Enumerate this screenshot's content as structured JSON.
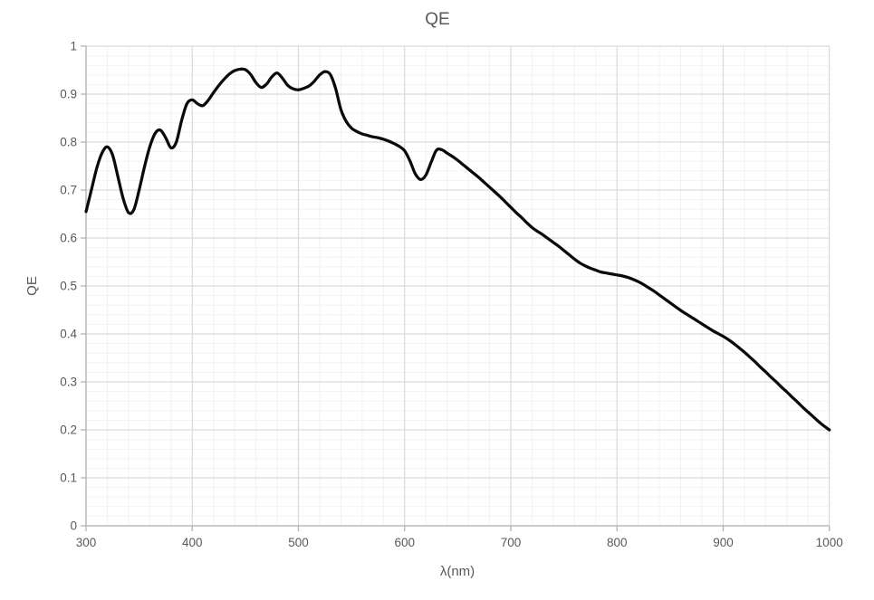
{
  "chart_data": {
    "type": "line",
    "title": "QE",
    "xlabel": "λ(nm)",
    "ylabel": "QE",
    "xlim": [
      300,
      1000
    ],
    "ylim": [
      0,
      1
    ],
    "grid": "major+minor",
    "legend_position": "none",
    "x_tick_values": [
      300,
      400,
      500,
      600,
      700,
      800,
      900,
      1000
    ],
    "x_tick_labels": [
      "300",
      "400",
      "500",
      "600",
      "700",
      "800",
      "900",
      "1000"
    ],
    "x_minor_step": 20,
    "y_tick_values": [
      0,
      0.1,
      0.2,
      0.3,
      0.4,
      0.5,
      0.6,
      0.7,
      0.8,
      0.9,
      1
    ],
    "y_tick_labels": [
      "0",
      "0.1",
      "0.2",
      "0.3",
      "0.4",
      "0.5",
      "0.6",
      "0.7",
      "0.8",
      "0.9",
      "1"
    ],
    "y_minor_step": 0.02,
    "colors": {
      "background": "#ffffff",
      "text": "#595959",
      "axis_line": "#b3b3b3",
      "grid_major": "#d9d9d9",
      "grid_minor": "#f2f2f2",
      "series_line": "#0a0a0a"
    },
    "line_width": 3.25,
    "series": [
      {
        "name": "QE",
        "x": [
          300,
          305,
          310,
          315,
          320,
          325,
          330,
          335,
          340,
          345,
          350,
          355,
          360,
          365,
          370,
          375,
          380,
          385,
          390,
          395,
          400,
          405,
          410,
          415,
          420,
          425,
          430,
          435,
          440,
          445,
          450,
          455,
          460,
          465,
          470,
          475,
          480,
          485,
          490,
          495,
          500,
          505,
          510,
          515,
          520,
          525,
          530,
          535,
          540,
          545,
          550,
          555,
          560,
          565,
          570,
          575,
          580,
          585,
          590,
          595,
          600,
          605,
          610,
          615,
          620,
          625,
          630,
          635,
          640,
          645,
          650,
          655,
          660,
          665,
          670,
          675,
          680,
          685,
          690,
          695,
          700,
          705,
          710,
          715,
          720,
          725,
          730,
          735,
          740,
          745,
          750,
          755,
          760,
          765,
          770,
          775,
          780,
          785,
          790,
          795,
          800,
          805,
          810,
          815,
          820,
          825,
          830,
          835,
          840,
          845,
          850,
          855,
          860,
          865,
          870,
          875,
          880,
          885,
          890,
          895,
          900,
          905,
          910,
          915,
          920,
          925,
          930,
          935,
          940,
          945,
          950,
          955,
          960,
          965,
          970,
          975,
          980,
          985,
          990,
          995,
          1000
        ],
        "y": [
          0.655,
          0.7,
          0.745,
          0.777,
          0.79,
          0.773,
          0.728,
          0.682,
          0.653,
          0.659,
          0.7,
          0.748,
          0.79,
          0.818,
          0.825,
          0.809,
          0.788,
          0.8,
          0.845,
          0.88,
          0.888,
          0.88,
          0.876,
          0.887,
          0.903,
          0.918,
          0.931,
          0.942,
          0.949,
          0.952,
          0.951,
          0.941,
          0.924,
          0.914,
          0.921,
          0.936,
          0.944,
          0.933,
          0.918,
          0.911,
          0.909,
          0.912,
          0.917,
          0.927,
          0.94,
          0.947,
          0.941,
          0.912,
          0.868,
          0.843,
          0.829,
          0.822,
          0.817,
          0.814,
          0.811,
          0.809,
          0.806,
          0.802,
          0.797,
          0.791,
          0.782,
          0.761,
          0.734,
          0.722,
          0.731,
          0.758,
          0.783,
          0.784,
          0.777,
          0.77,
          0.762,
          0.753,
          0.744,
          0.735,
          0.726,
          0.716,
          0.706,
          0.696,
          0.686,
          0.675,
          0.664,
          0.653,
          0.643,
          0.632,
          0.622,
          0.614,
          0.607,
          0.599,
          0.591,
          0.583,
          0.574,
          0.565,
          0.556,
          0.548,
          0.542,
          0.537,
          0.533,
          0.529,
          0.527,
          0.525,
          0.523,
          0.521,
          0.518,
          0.514,
          0.509,
          0.503,
          0.496,
          0.489,
          0.481,
          0.473,
          0.465,
          0.457,
          0.449,
          0.442,
          0.435,
          0.428,
          0.421,
          0.414,
          0.407,
          0.401,
          0.395,
          0.388,
          0.38,
          0.371,
          0.362,
          0.352,
          0.342,
          0.331,
          0.321,
          0.31,
          0.3,
          0.289,
          0.279,
          0.268,
          0.258,
          0.247,
          0.237,
          0.227,
          0.217,
          0.208,
          0.2
        ]
      }
    ]
  }
}
